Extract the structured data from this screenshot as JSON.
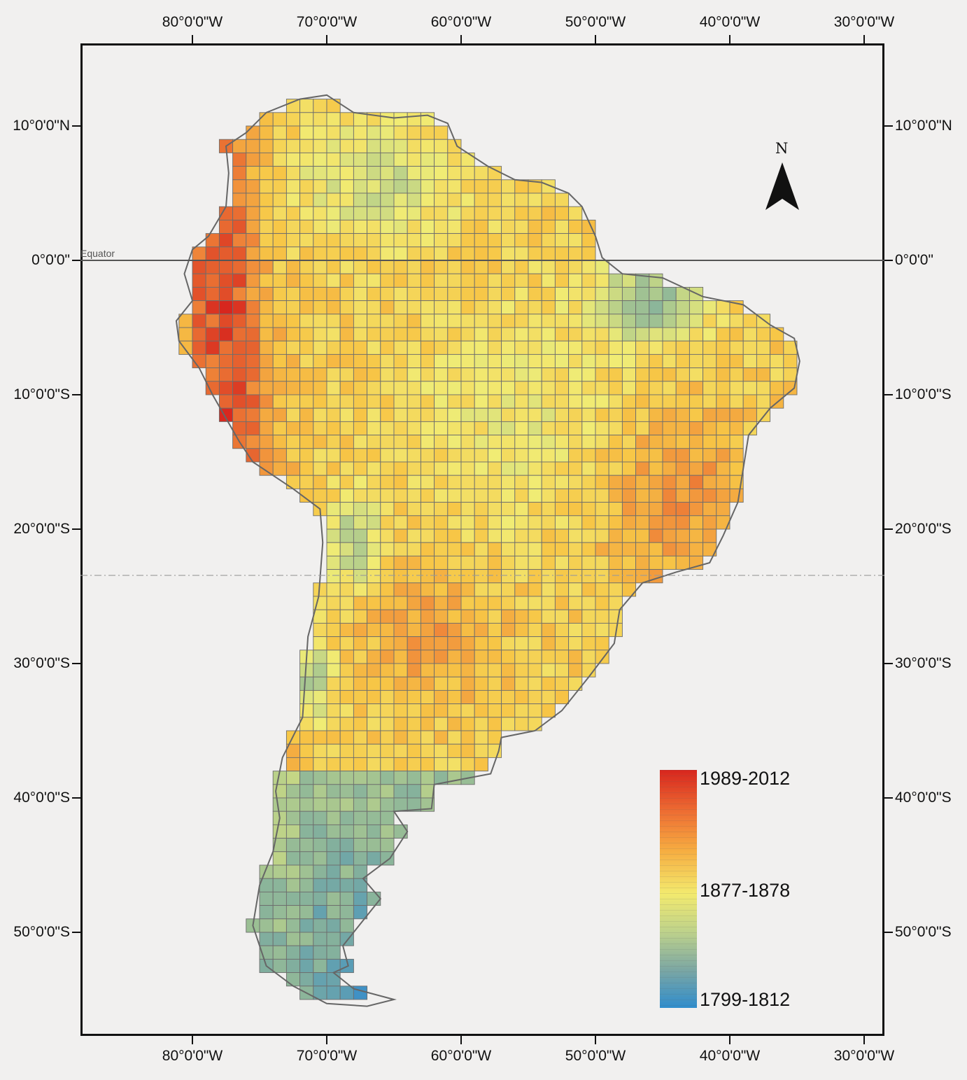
{
  "longitude_labels": [
    "80°0'0\"W",
    "70°0'0\"W",
    "60°0'0\"W",
    "50°0'0\"W",
    "40°0'0\"W",
    "30°0'0\"W"
  ],
  "latitude_labels_left": [
    "10°0'0\"N",
    "0°0'0\"",
    "10°0'0\"S",
    "20°0'0\"S",
    "30°0'0\"S",
    "40°0'0\"S",
    "50°0'0\"S"
  ],
  "latitude_labels_right": [
    "10°0'0\"N",
    "0°0'0\"",
    "10°0'0\"S",
    "20°0'0\"S",
    "30°0'0\"S",
    "40°0'0\"S",
    "50°0'0\"S"
  ],
  "equator_label": "Equator",
  "north_letter": "N",
  "legend": {
    "high": "1989-2012",
    "mid": "1877-1878",
    "low": "1799-1812",
    "colors": [
      "#d7261e",
      "#f08a3a",
      "#f7c646",
      "#f1ec74",
      "#b6cf8b",
      "#80ae9e",
      "#3d90c7"
    ]
  },
  "chart_data": {
    "type": "heatmap",
    "title": "",
    "value_range": [
      "1799-1812",
      "1989-2012"
    ],
    "x_axis_ticks": [
      -80,
      -70,
      -60,
      -50,
      -40,
      -30
    ],
    "y_axis_ticks": [
      10,
      0,
      -10,
      -20,
      -30,
      -40,
      -50
    ],
    "reference_lines": [
      "Equator",
      "Tropic of Capricorn"
    ],
    "grid_cell_degrees": 1
  }
}
